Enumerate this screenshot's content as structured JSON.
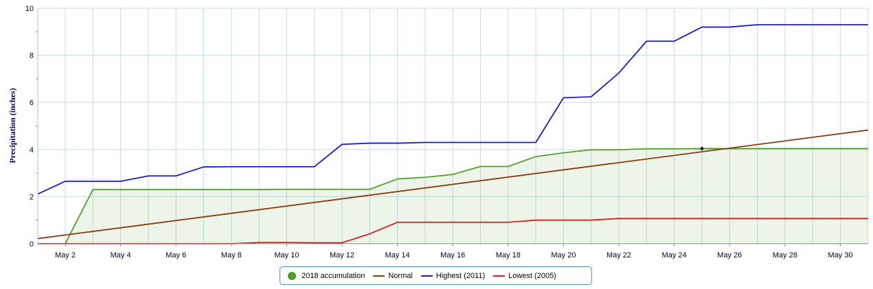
{
  "chart_data": {
    "type": "line",
    "title": "",
    "xlabel": "",
    "ylabel": "Precipitation (inches)",
    "ylim": [
      0,
      10
    ],
    "xlim": [
      1,
      31
    ],
    "x_ticks": [
      2,
      4,
      6,
      8,
      10,
      12,
      14,
      16,
      18,
      20,
      22,
      24,
      26,
      28,
      30
    ],
    "x_tick_labels": [
      "May 2",
      "May 4",
      "May 6",
      "May 8",
      "May 10",
      "May 12",
      "May 14",
      "May 16",
      "May 18",
      "May 20",
      "May 22",
      "May 24",
      "May 26",
      "May 28",
      "May 30"
    ],
    "y_ticks": [
      0,
      2,
      4,
      6,
      8,
      10
    ],
    "grid": true,
    "legend_position": "bottom-center",
    "series": [
      {
        "name": "2018 accumulation",
        "color": "#4fa02a",
        "marker": "dot",
        "fill": "#4fa02a",
        "x": [
          2,
          3,
          4,
          5,
          6,
          7,
          8,
          9,
          10,
          11,
          12,
          13,
          14,
          15,
          16,
          17,
          18,
          19,
          20,
          21,
          22,
          23,
          24,
          25,
          26,
          27,
          28,
          29,
          30,
          31,
          32
        ],
        "values": [
          0,
          2.3,
          2.3,
          2.3,
          2.3,
          2.3,
          2.3,
          2.3,
          2.31,
          2.31,
          2.31,
          2.31,
          2.75,
          2.82,
          2.94,
          3.28,
          3.28,
          3.7,
          3.86,
          3.99,
          3.99,
          4.03,
          4.03,
          4.04,
          4.04,
          4.04,
          4.04,
          4.04,
          4.04,
          4.04,
          4.04
        ]
      },
      {
        "name": "Normal",
        "color": "#8b3a0f",
        "x": [
          0.9,
          32
        ],
        "values": [
          0.2,
          4.98
        ]
      },
      {
        "name": "Highest (2011)",
        "color": "#1a1adc",
        "x": [
          0.9,
          2,
          3,
          4,
          5,
          6,
          7,
          8,
          9,
          10,
          11,
          12,
          13,
          14,
          15,
          16,
          17,
          18,
          19,
          20,
          21,
          22,
          23,
          24,
          25,
          26,
          27,
          28,
          29,
          30,
          31,
          32
        ],
        "values": [
          2.05,
          2.65,
          2.65,
          2.65,
          2.88,
          2.88,
          3.26,
          3.27,
          3.27,
          3.27,
          3.27,
          4.22,
          4.27,
          4.27,
          4.3,
          4.3,
          4.3,
          4.3,
          4.3,
          6.2,
          6.24,
          7.25,
          8.6,
          8.6,
          9.2,
          9.2,
          9.3,
          9.3,
          9.3,
          9.3,
          9.3,
          9.3
        ]
      },
      {
        "name": "Lowest (2005)",
        "color": "#dd1c1c",
        "x": [
          0.9,
          2,
          3,
          4,
          5,
          6,
          7,
          8,
          9,
          10,
          11,
          12,
          13,
          14,
          15,
          16,
          17,
          18,
          19,
          20,
          21,
          22,
          23,
          24,
          25,
          26,
          27,
          28,
          29,
          30,
          31,
          32
        ],
        "values": [
          0,
          0,
          0,
          0,
          0,
          0,
          0,
          0,
          0.05,
          0.05,
          0.04,
          0.04,
          0.42,
          0.91,
          0.91,
          0.91,
          0.91,
          0.91,
          1,
          1,
          1,
          1.07,
          1.07,
          1.07,
          1.07,
          1.07,
          1.07,
          1.07,
          1.07,
          1.07,
          1.07,
          1.07
        ]
      }
    ],
    "annotation_marker": {
      "x": 25,
      "y": 4.04
    }
  }
}
